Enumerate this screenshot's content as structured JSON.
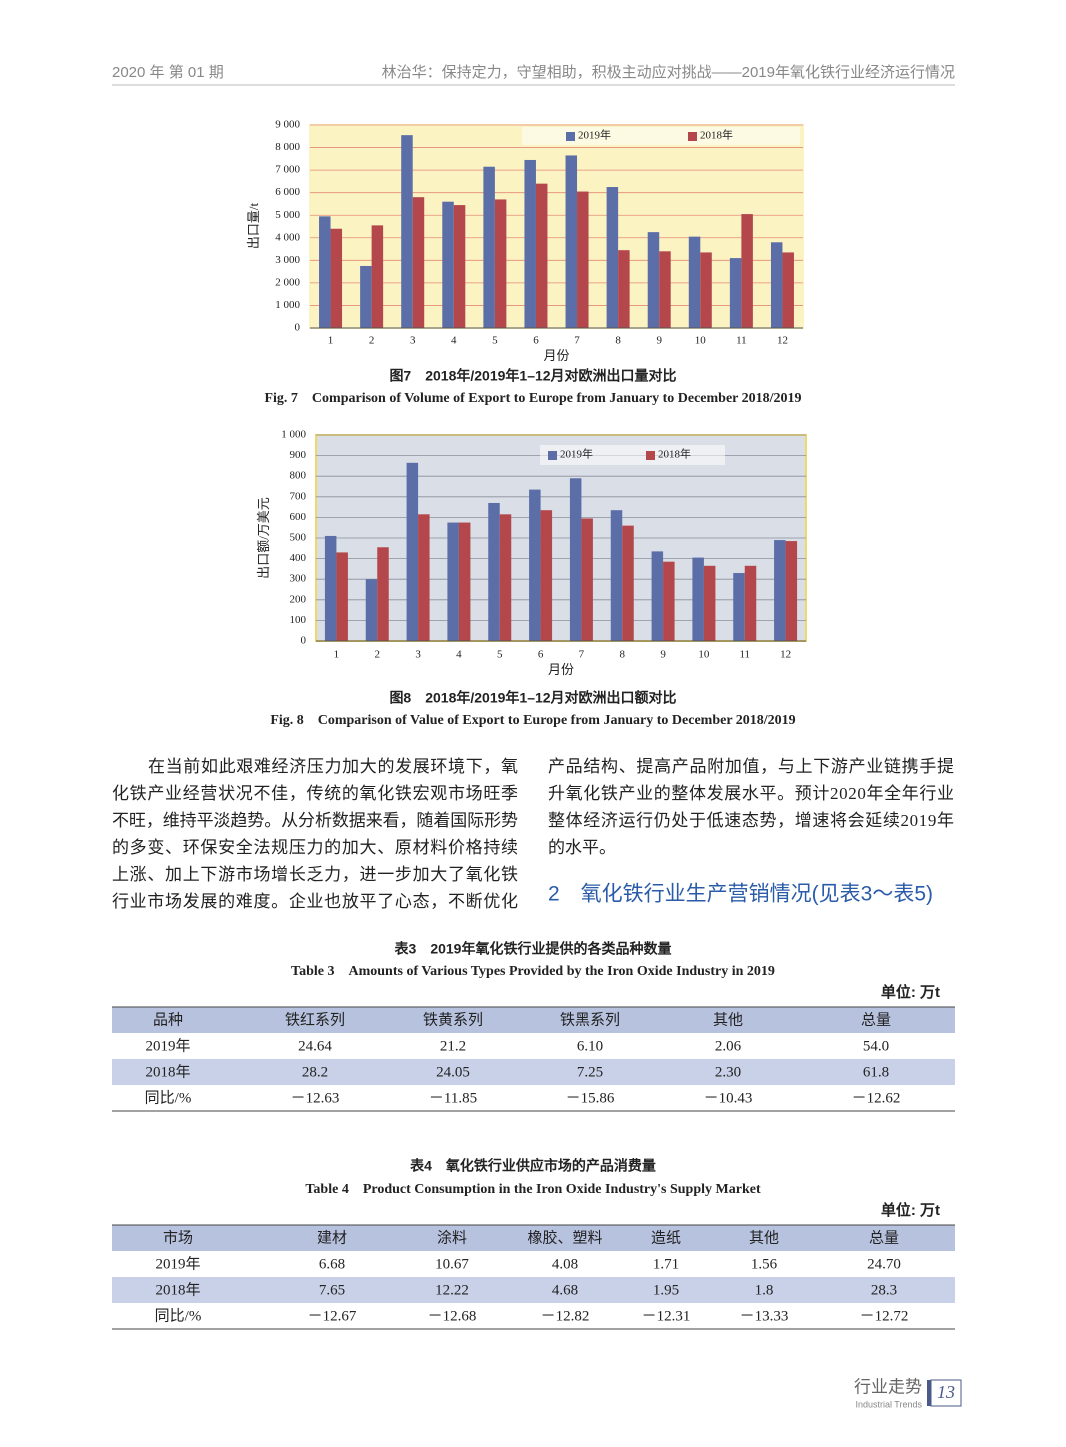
{
  "header": {
    "left": "2020 年  第 01 期",
    "right": "林治华：保持定力，守望相助，积极主动应对挑战——2019年氧化铁行业经济运行情况"
  },
  "chart_data": [
    {
      "type": "bar",
      "title": "图7　2018年/2019年1–12月对欧洲出口量对比",
      "subtitle": "Fig. 7　Comparison of Volume of Export to Europe from January to December 2018/2019",
      "x_label": "月份",
      "y_label": "出口量/t",
      "categories": [
        "1",
        "2",
        "3",
        "4",
        "5",
        "6",
        "7",
        "8",
        "9",
        "10",
        "11",
        "12"
      ],
      "series": [
        {
          "name": "2019年",
          "color": "#5b6ea8",
          "values": [
            4950,
            2750,
            8550,
            5600,
            7150,
            7450,
            7650,
            6250,
            4250,
            4050,
            3100,
            3800
          ]
        },
        {
          "name": "2018年",
          "color": "#b4474c",
          "values": [
            4400,
            4550,
            5800,
            5450,
            5700,
            6400,
            6050,
            3450,
            3400,
            3350,
            5050,
            3350
          ]
        }
      ],
      "ylim": [
        0,
        9000
      ],
      "yticks": [
        0,
        {
          "value": 1000,
          "label": "1 000"
        },
        {
          "value": 2000,
          "label": "2 000"
        },
        {
          "value": 3000,
          "label": "3 000"
        },
        {
          "value": 4000,
          "label": "4 000"
        },
        {
          "value": 5000,
          "label": "5 000"
        },
        {
          "value": 6000,
          "label": "6 000"
        },
        {
          "value": 7000,
          "label": "7 000"
        },
        {
          "value": 8000,
          "label": "8 000"
        },
        {
          "value": 9000,
          "label": "9 000"
        }
      ],
      "grid": true,
      "grid_color": "#e58a78"
    },
    {
      "type": "bar",
      "title": "图8　2018年/2019年1–12月对欧洲出口额对比",
      "subtitle": "Fig. 8　Comparison of Value of Export to Europe from January to December 2018/2019",
      "x_label": "月份",
      "y_label": "出口额/万美元",
      "categories": [
        "1",
        "2",
        "3",
        "4",
        "5",
        "6",
        "7",
        "8",
        "9",
        "10",
        "11",
        "12"
      ],
      "series": [
        {
          "name": "2019年",
          "color": "#5b6ea8",
          "values": [
            510,
            300,
            865,
            575,
            670,
            735,
            790,
            635,
            435,
            405,
            330,
            490
          ]
        },
        {
          "name": "2018年",
          "color": "#b4474c",
          "values": [
            430,
            455,
            615,
            575,
            615,
            635,
            595,
            560,
            385,
            365,
            365,
            485
          ]
        }
      ],
      "ylim": [
        0,
        1000
      ],
      "yticks": [
        0,
        100,
        200,
        300,
        400,
        500,
        600,
        700,
        800,
        900,
        {
          "value": 1000,
          "label": "1 000"
        }
      ],
      "grid": true,
      "grid_color": "#8a8f9a"
    }
  ],
  "body": {
    "left_lines": [
      "在当前如此艰难经济压力加大的发展环境下，氧",
      "化铁产业经营状况不佳，传统的氧化铁宏观市场旺季",
      "不旺，维持平淡趋势。从分析数据来看，随着国际形势",
      "的多变、环保安全法规压力的加大、原材料价格持续",
      "上涨、加上下游市场增长乏力，进一步加大了氧化铁",
      "行业市场发展的难度。企业也放平了心态，不断优化"
    ],
    "right_lines": [
      "产品结构、提高产品附加值，与上下游产业链携手提",
      "升氧化铁产业的整体发展水平。预计2020年全年行业",
      "整体经济运行仍处于低速态势，增速将会延续2019年",
      "的水平。"
    ],
    "section_heading": "2　氧化铁行业生产营销情况(见表3～表5)"
  },
  "tables": [
    {
      "title": "表3　2019年氧化铁行业提供的各类品种数量",
      "subtitle": "Table 3　Amounts of Various Types Provided by the Iron Oxide Industry in 2019",
      "unit": "单位: 万t",
      "header": [
        "品种",
        "铁红系列",
        "铁黄系列",
        "铁黑系列",
        "其他",
        "总量"
      ],
      "rows": [
        [
          "2019年",
          "24.64",
          "21.2",
          "6.10",
          "2.06",
          "54.0"
        ],
        [
          "2018年",
          "28.2",
          "24.05",
          "7.25",
          "2.30",
          "61.8"
        ],
        [
          "同比/%",
          "－12.63",
          "－11.85",
          "－15.86",
          "－10.43",
          "－12.62"
        ]
      ]
    },
    {
      "title": "表4　氧化铁行业供应市场的产品消费量",
      "subtitle": "Table 4　Product Consumption in the Iron Oxide Industry's Supply Market",
      "unit": "单位: 万t",
      "header": [
        "市场",
        "建材",
        "涂料",
        "橡胶、塑料",
        "造纸",
        "其他",
        "总量"
      ],
      "rows": [
        [
          "2019年",
          "6.68",
          "10.67",
          "4.08",
          "1.71",
          "1.56",
          "24.70"
        ],
        [
          "2018年",
          "7.65",
          "12.22",
          "4.68",
          "1.95",
          "1.8",
          "28.3"
        ],
        [
          "同比/%",
          "－12.67",
          "－12.68",
          "－12.82",
          "－12.31",
          "－13.33",
          "－12.72"
        ]
      ]
    }
  ],
  "footer": {
    "section": "行业走势",
    "section_en": "Industrial Trends",
    "page": "13"
  }
}
